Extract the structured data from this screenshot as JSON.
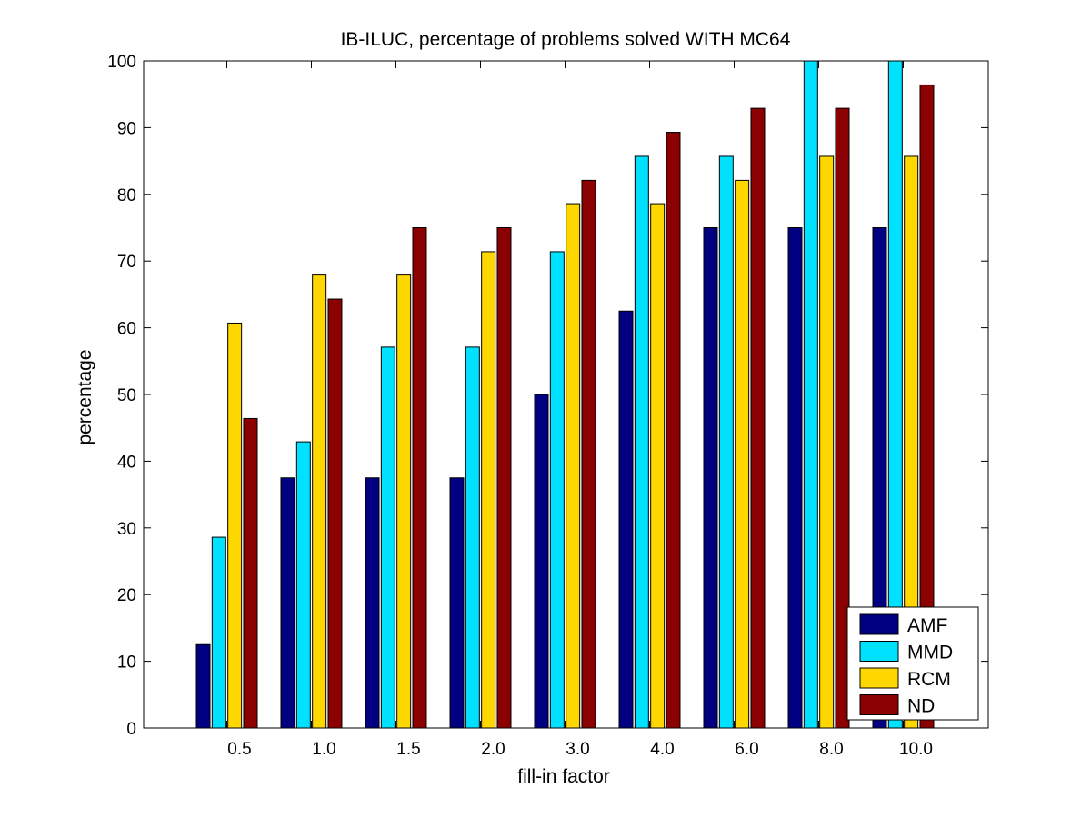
{
  "chart_data": {
    "type": "bar",
    "title": "IB-ILUC, percentage of problems solved WITH MC64",
    "xlabel": "fill-in factor",
    "ylabel": "percentage",
    "categories": [
      "0.5",
      "1.0",
      "1.5",
      "2.0",
      "3.0",
      "4.0",
      "6.0",
      "8.0",
      "10.0"
    ],
    "ylim": [
      0,
      100
    ],
    "yticks": [
      0,
      10,
      20,
      30,
      40,
      50,
      60,
      70,
      80,
      90,
      100
    ],
    "grid": false,
    "legend": "bottom-right",
    "series": [
      {
        "name": "AMF",
        "color": "#000080",
        "values": [
          12.5,
          37.5,
          37.5,
          37.5,
          50.0,
          62.5,
          75.0,
          75.0,
          75.0
        ]
      },
      {
        "name": "MMD",
        "color": "#00e0ff",
        "values": [
          28.6,
          42.9,
          57.1,
          57.1,
          71.4,
          85.7,
          85.7,
          100.0,
          100.0
        ]
      },
      {
        "name": "RCM",
        "color": "#ffd700",
        "values": [
          60.7,
          67.9,
          67.9,
          71.4,
          78.6,
          78.6,
          82.1,
          85.7,
          85.7
        ]
      },
      {
        "name": "ND",
        "color": "#8b0000",
        "values": [
          46.4,
          64.3,
          75.0,
          75.0,
          82.1,
          89.3,
          92.9,
          92.9,
          96.4
        ]
      }
    ]
  }
}
